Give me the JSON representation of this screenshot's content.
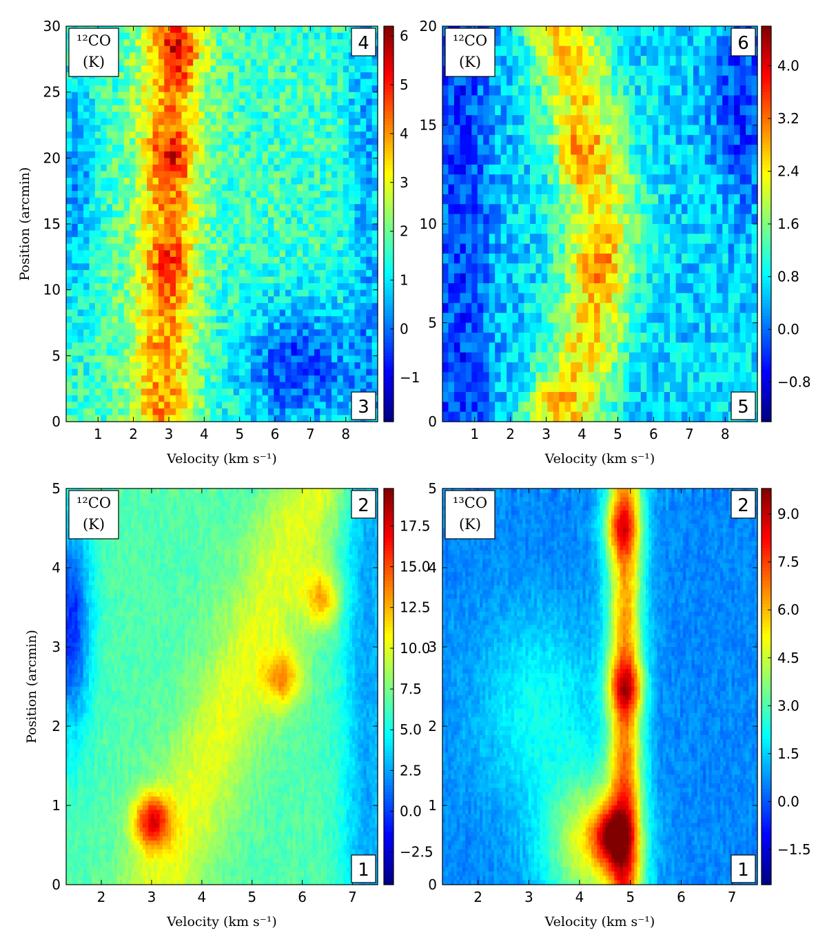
{
  "chart_data": [
    {
      "type": "heatmap",
      "panel": "top-left",
      "line": "¹²CO",
      "unit": "(K)",
      "start_label": "4",
      "end_label": "3",
      "xlabel": "Velocity (km s⁻¹)",
      "ylabel": "Position (arcmin)",
      "xlim": [
        0.1,
        8.9
      ],
      "ylim": [
        0,
        30
      ],
      "xticks": [
        "1",
        "2",
        "3",
        "4",
        "5",
        "6",
        "7",
        "8"
      ],
      "yticks": [
        "0",
        "5",
        "10",
        "15",
        "20",
        "25",
        "30"
      ],
      "colorbar": {
        "min": -1.9,
        "max": 6.2,
        "ticks": [
          "−1",
          "0",
          "1",
          "2",
          "3",
          "4",
          "5",
          "6"
        ]
      },
      "emission_peaks": [
        {
          "velocity": 3.1,
          "position": 20,
          "temperature_K": 4.5
        },
        {
          "velocity": 3.3,
          "position": 28,
          "temperature_K": 5.0
        },
        {
          "velocity": 3.1,
          "position": 12,
          "temperature_K": 3.8
        }
      ]
    },
    {
      "type": "heatmap",
      "panel": "top-right",
      "line": "¹²CO",
      "unit": "(K)",
      "start_label": "6",
      "end_label": "5",
      "xlabel": "Velocity (km s⁻¹)",
      "ylabel": "",
      "xlim": [
        0.1,
        8.9
      ],
      "ylim": [
        0,
        20
      ],
      "xticks": [
        "1",
        "2",
        "3",
        "4",
        "5",
        "6",
        "7",
        "8"
      ],
      "yticks": [
        "0",
        "5",
        "10",
        "15",
        "20"
      ],
      "colorbar": {
        "min": -1.4,
        "max": 4.6,
        "ticks": [
          "−0.8",
          "0.0",
          "0.8",
          "1.6",
          "2.4",
          "3.2",
          "4.0"
        ]
      },
      "emission_peaks": [
        {
          "velocity": 3.8,
          "position": 13.5,
          "temperature_K": 3.8
        },
        {
          "velocity": 4.5,
          "position": 8,
          "temperature_K": 3.3
        },
        {
          "velocity": 3.0,
          "position": 0.8,
          "temperature_K": 3.2
        }
      ]
    },
    {
      "type": "heatmap",
      "panel": "bottom-left",
      "line": "¹²CO",
      "unit": "(K)",
      "start_label": "2",
      "end_label": "1",
      "xlabel": "Velocity (km s⁻¹)",
      "ylabel": "Position (arcmin)",
      "xlim": [
        1.3,
        7.5
      ],
      "ylim": [
        0,
        5
      ],
      "xticks": [
        "2",
        "3",
        "4",
        "5",
        "6",
        "7"
      ],
      "yticks": [
        "0",
        "1",
        "2",
        "3",
        "4",
        "5"
      ],
      "colorbar": {
        "min": -4.5,
        "max": 19.8,
        "ticks": [
          "−2.5",
          "0.0",
          "2.5",
          "5.0",
          "7.5",
          "10.0",
          "12.5",
          "15.0",
          "17.5"
        ]
      },
      "emission_peaks": [
        {
          "velocity": 3.0,
          "position": 0.8,
          "temperature_K": 18.5
        },
        {
          "velocity": 5.6,
          "position": 2.6,
          "temperature_K": 12.5
        },
        {
          "velocity": 6.4,
          "position": 3.6,
          "temperature_K": 11.5
        }
      ]
    },
    {
      "type": "heatmap",
      "panel": "bottom-right",
      "line": "¹³CO",
      "unit": "(K)",
      "start_label": "2",
      "end_label": "1",
      "xlabel": "Velocity (km s⁻¹)",
      "ylabel": "",
      "xlim": [
        1.3,
        7.5
      ],
      "ylim": [
        0,
        5
      ],
      "xticks": [
        "2",
        "3",
        "4",
        "5",
        "6",
        "7"
      ],
      "yticks": [
        "0",
        "1",
        "2",
        "3",
        "4",
        "5"
      ],
      "colorbar": {
        "min": -2.6,
        "max": 9.8,
        "ticks": [
          "−1.5",
          "0.0",
          "1.5",
          "3.0",
          "4.5",
          "6.0",
          "7.5",
          "9.0"
        ]
      },
      "emission_peaks": [
        {
          "velocity": 4.6,
          "position": 0.6,
          "temperature_K": 9.5
        },
        {
          "velocity": 4.9,
          "position": 2.5,
          "temperature_K": 7.5
        },
        {
          "velocity": 4.8,
          "position": 4.5,
          "temperature_K": 7.0
        }
      ]
    }
  ],
  "colors": {
    "frame": "#000000",
    "label_box": "#ffffff"
  },
  "colormap": "jet"
}
